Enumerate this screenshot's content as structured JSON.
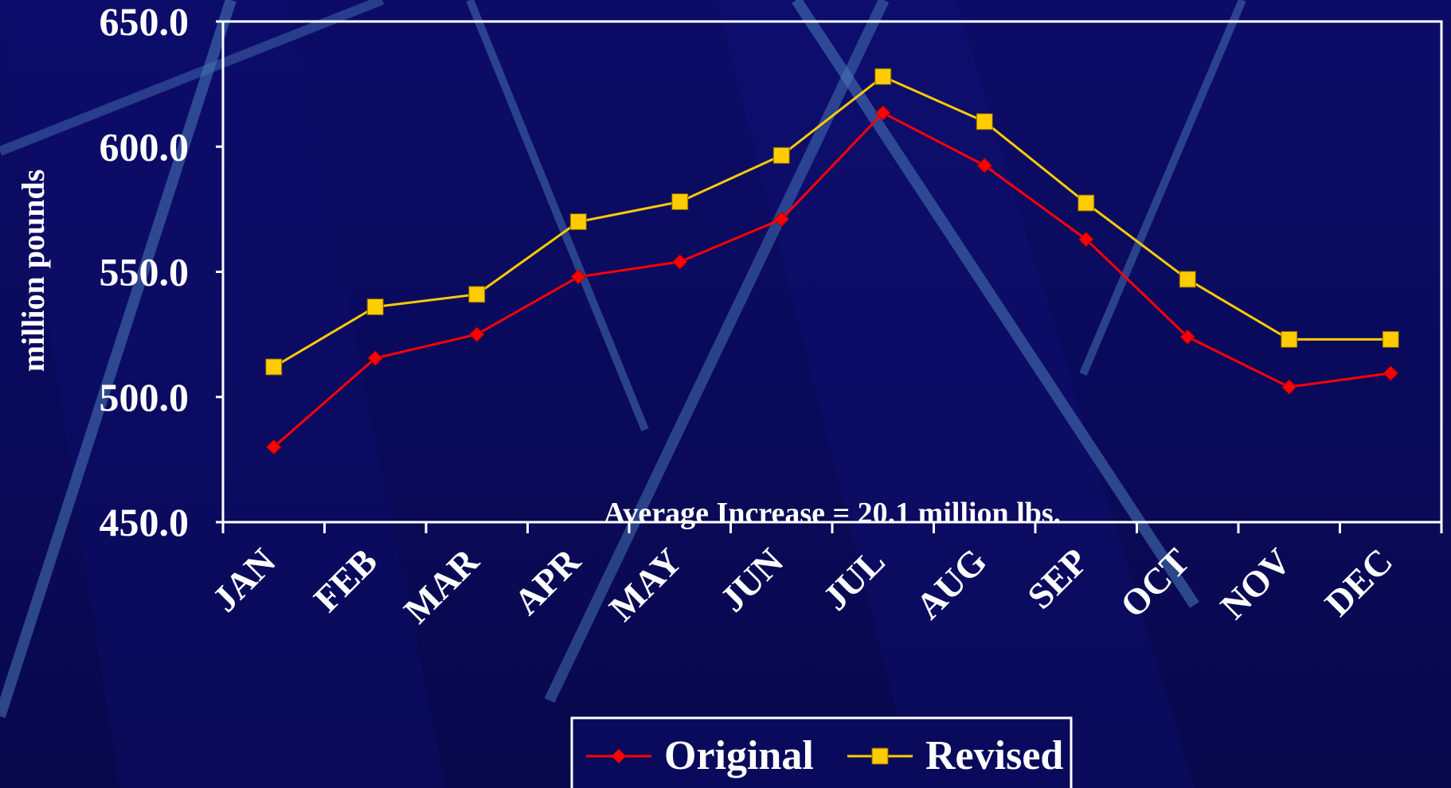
{
  "chart_data": {
    "type": "line",
    "ylabel": "million pounds",
    "xlabel": "",
    "title": "",
    "ylim": [
      450,
      650
    ],
    "y_ticks": [
      "450.0",
      "500.0",
      "550.0",
      "600.0",
      "650.0"
    ],
    "y_tick_values": [
      450,
      500,
      550,
      600,
      650
    ],
    "categories": [
      "JAN",
      "FEB",
      "MAR",
      "APR",
      "MAY",
      "JUN",
      "JUL",
      "AUG",
      "SEP",
      "OCT",
      "NOV",
      "DEC"
    ],
    "series": [
      {
        "name": "Original",
        "color": "#ff0000",
        "marker": "diamond",
        "values": [
          480,
          515.5,
          525,
          548,
          554,
          571,
          613.5,
          592.5,
          563,
          524,
          504,
          509.5
        ]
      },
      {
        "name": "Revised",
        "color": "#ffcc00",
        "marker": "square",
        "values": [
          512,
          536,
          541,
          570,
          578,
          596.5,
          628,
          610,
          577.5,
          547,
          523,
          523
        ]
      }
    ],
    "annotation": "Average Increase = 20.1 million lbs.",
    "legend_position": "bottom-center",
    "grid": false
  }
}
